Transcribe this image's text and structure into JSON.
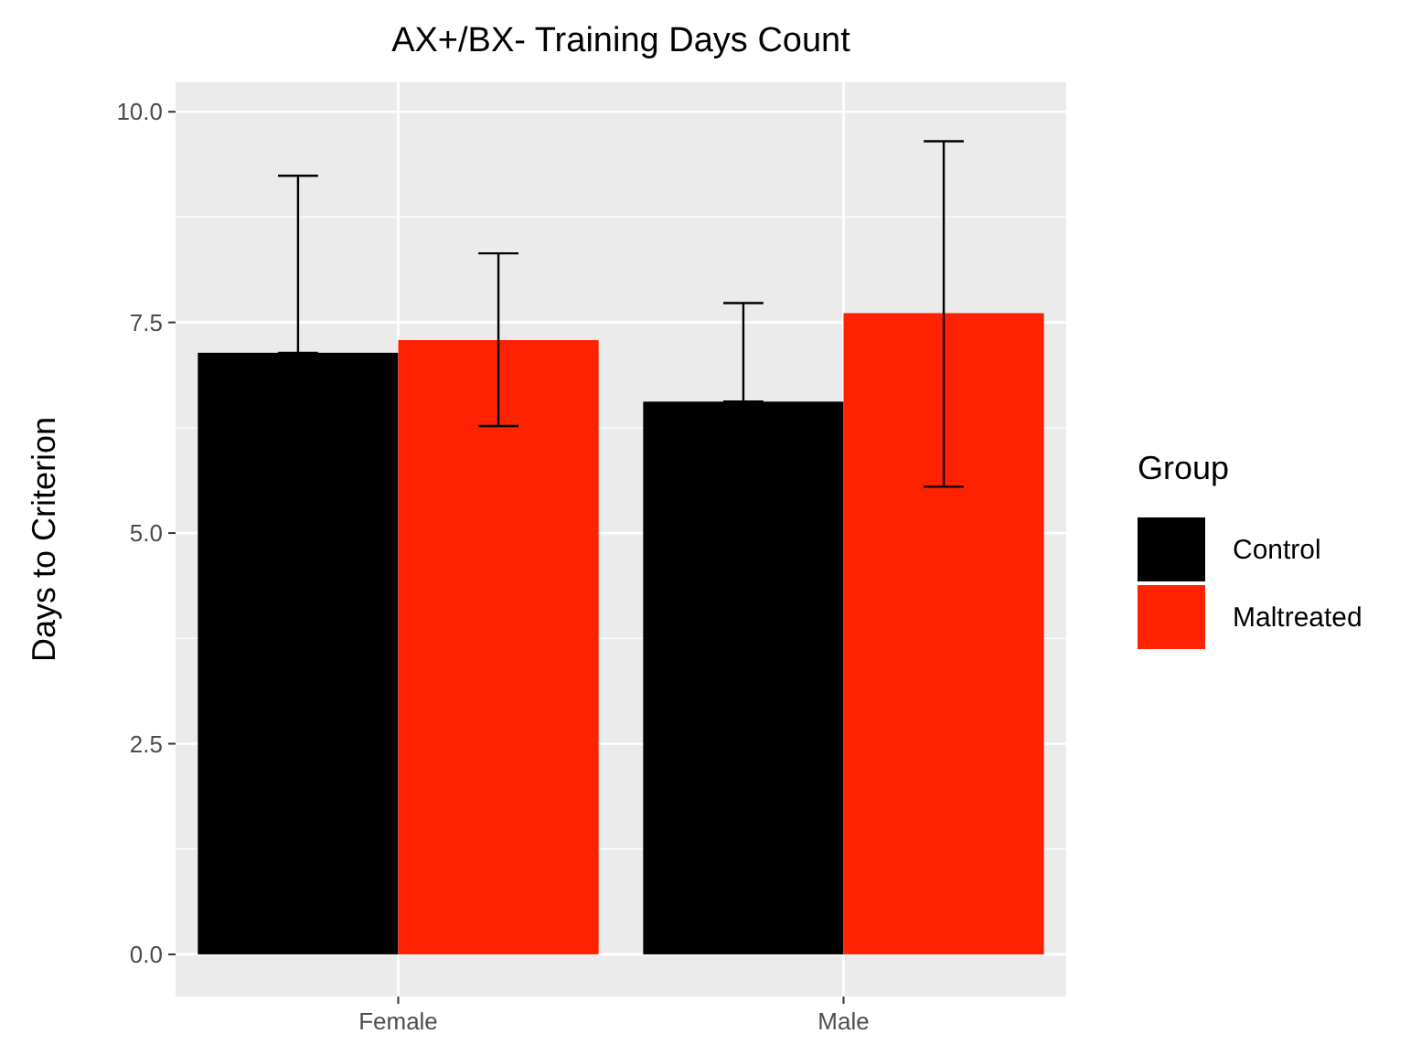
{
  "chart_data": {
    "type": "bar",
    "title": "AX+/BX- Training Days Count",
    "ylabel": "Days to Criterion",
    "legend_title": "Group",
    "categories": [
      "Female",
      "Male"
    ],
    "series": [
      {
        "name": "Control",
        "color": "#000000",
        "values": [
          7.14,
          6.56
        ],
        "errors": [
          [
            7.14,
            9.24
          ],
          [
            6.56,
            7.73
          ]
        ]
      },
      {
        "name": "Maltreated",
        "color": "#ff2200",
        "values": [
          7.29,
          7.61
        ],
        "errors": [
          [
            6.27,
            8.32
          ],
          [
            5.55,
            9.65
          ]
        ]
      }
    ],
    "ylim": [
      -0.5,
      10.35
    ],
    "yticks": [
      {
        "value": 0,
        "label": "0.0"
      },
      {
        "value": 2.5,
        "label": "2.5"
      },
      {
        "value": 5,
        "label": "5.0"
      },
      {
        "value": 7.5,
        "label": "7.5"
      },
      {
        "value": 10,
        "label": "10.0"
      }
    ],
    "grid": true,
    "legend": "right"
  }
}
